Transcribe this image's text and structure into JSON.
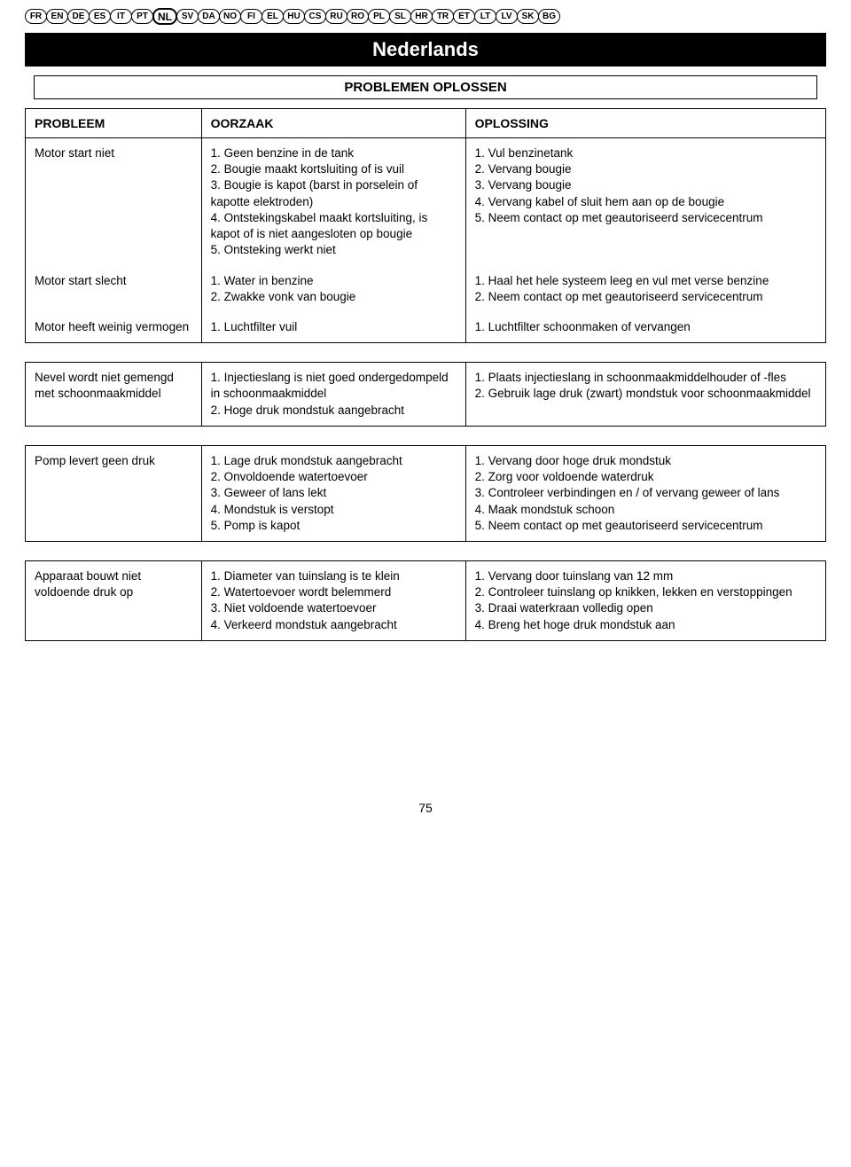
{
  "langs": [
    "FR",
    "EN",
    "DE",
    "ES",
    "IT",
    "PT",
    "NL",
    "SV",
    "DA",
    "NO",
    "FI",
    "EL",
    "HU",
    "CS",
    "RU",
    "RO",
    "PL",
    "SL",
    "HR",
    "TR",
    "ET",
    "LT",
    "LV",
    "SK",
    "BG"
  ],
  "active_lang": "NL",
  "title": "Nederlands",
  "subtitle": "PROBLEMEN OPLOSSEN",
  "headers": {
    "c1": "PROBLEEM",
    "c2": "OORZAAK",
    "c3": "OPLOSSING"
  },
  "rows": [
    {
      "problem": "Motor start niet",
      "cause": "1. Geen benzine in de tank\n2. Bougie maakt kortsluiting of is vuil\n3. Bougie is kapot (barst in porselein of kapotte elektroden)\n4. Ontstekingskabel maakt kortsluiting, is kapot of is niet aangesloten op bougie\n5. Ontsteking werkt niet",
      "solution": "1. Vul benzinetank\n2. Vervang bougie\n3. Vervang bougie\n4. Vervang kabel of sluit hem aan op de bougie\n5. Neem contact op met geautoriseerd servicecentrum"
    },
    {
      "problem": "Motor start slecht",
      "cause": "1. Water in benzine\n2. Zwakke vonk van bougie",
      "solution": "1. Haal het hele systeem leeg en vul met verse benzine\n2. Neem contact op met geautoriseerd servicecentrum"
    },
    {
      "problem": "Motor heeft weinig vermogen",
      "cause": "1. Luchtfilter vuil",
      "solution": "1. Luchtfilter schoonmaken of vervangen"
    },
    {
      "problem": "Nevel wordt niet gemengd met schoonmaakmiddel",
      "cause": "1. Injectieslang is niet goed ondergedompeld in schoonmaakmiddel\n2. Hoge druk mondstuk aangebracht",
      "solution": "1. Plaats injectieslang in schoonmaakmiddelhouder of -fles\n2. Gebruik lage druk (zwart) mondstuk voor schoonmaakmiddel"
    },
    {
      "problem": "Pomp levert geen druk",
      "cause": "1. Lage druk mondstuk aangebracht\n2. Onvoldoende watertoevoer\n3. Geweer of lans lekt\n4. Mondstuk is verstopt\n5. Pomp is kapot",
      "solution": "1. Vervang door hoge druk mondstuk\n2. Zorg voor voldoende waterdruk\n3. Controleer verbindingen en / of vervang geweer of lans\n4. Maak mondstuk schoon\n5. Neem contact op met geautoriseerd servicecentrum"
    },
    {
      "problem": "Apparaat bouwt niet voldoende druk op",
      "cause": "1. Diameter van tuinslang is te klein\n2. Watertoevoer wordt belemmerd\n3. Niet voldoende watertoevoer\n4. Verkeerd mondstuk aangebracht",
      "solution": "1. Vervang door tuinslang van 12 mm\n2. Controleer tuinslang op knikken, lekken en verstoppingen\n3. Draai waterkraan volledig open\n4. Breng het hoge druk mondstuk aan"
    }
  ],
  "page_number": "75"
}
